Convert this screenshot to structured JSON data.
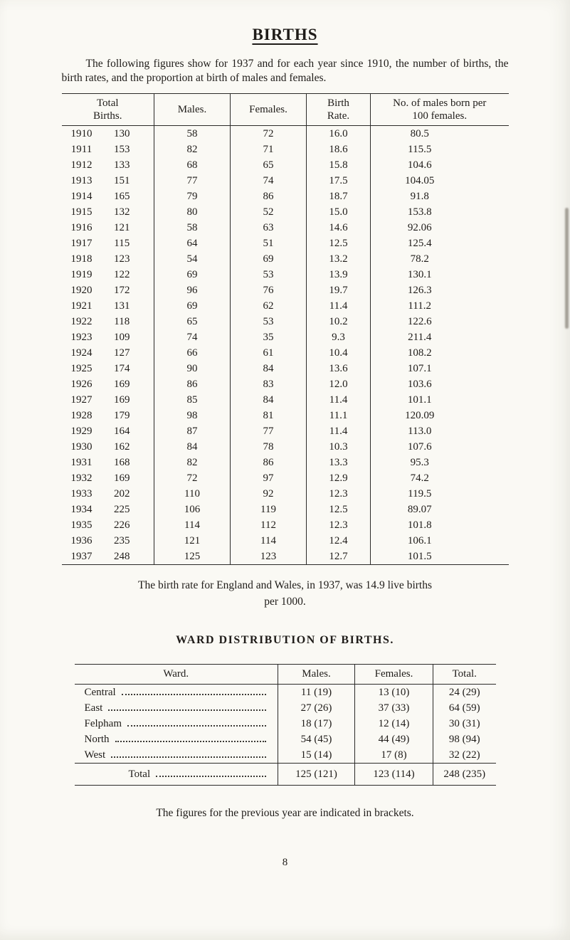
{
  "page": {
    "title": "BIRTHS",
    "intro": "The following figures show for 1937 and for each year since 1910, the number of births, the birth rates, and the proportion at birth of males and females.",
    "rate_note_line1": "The birth rate for England and Wales, in 1937, was 14.9 live births",
    "rate_note_line2": "per 1000.",
    "page_number": "8"
  },
  "births_table": {
    "headers": {
      "total_births": "Total Births.",
      "males": "Males.",
      "females": "Females.",
      "birth_rate": "Birth Rate.",
      "ratio": "No. of males born per 100 females."
    },
    "rows": [
      [
        "1910",
        "130",
        "58",
        "72",
        "16.0",
        "80.5"
      ],
      [
        "1911",
        "153",
        "82",
        "71",
        "18.6",
        "115.5"
      ],
      [
        "1912",
        "133",
        "68",
        "65",
        "15.8",
        "104.6"
      ],
      [
        "1913",
        "151",
        "77",
        "74",
        "17.5",
        "104.05"
      ],
      [
        "1914",
        "165",
        "79",
        "86",
        "18.7",
        "91.8"
      ],
      [
        "1915",
        "132",
        "80",
        "52",
        "15.0",
        "153.8"
      ],
      [
        "1916",
        "121",
        "58",
        "63",
        "14.6",
        "92.06"
      ],
      [
        "1917",
        "115",
        "64",
        "51",
        "12.5",
        "125.4"
      ],
      [
        "1918",
        "123",
        "54",
        "69",
        "13.2",
        "78.2"
      ],
      [
        "1919",
        "122",
        "69",
        "53",
        "13.9",
        "130.1"
      ],
      [
        "1920",
        "172",
        "96",
        "76",
        "19.7",
        "126.3"
      ],
      [
        "1921",
        "131",
        "69",
        "62",
        "11.4",
        "111.2"
      ],
      [
        "1922",
        "118",
        "65",
        "53",
        "10.2",
        "122.6"
      ],
      [
        "1923",
        "109",
        "74",
        "35",
        "9.3",
        "211.4"
      ],
      [
        "1924",
        "127",
        "66",
        "61",
        "10.4",
        "108.2"
      ],
      [
        "1925",
        "174",
        "90",
        "84",
        "13.6",
        "107.1"
      ],
      [
        "1926",
        "169",
        "86",
        "83",
        "12.0",
        "103.6"
      ],
      [
        "1927",
        "169",
        "85",
        "84",
        "11.4",
        "101.1"
      ],
      [
        "1928",
        "179",
        "98",
        "81",
        "11.1",
        "120.09"
      ],
      [
        "1929",
        "164",
        "87",
        "77",
        "11.4",
        "113.0"
      ],
      [
        "1930",
        "162",
        "84",
        "78",
        "10.3",
        "107.6"
      ],
      [
        "1931",
        "168",
        "82",
        "86",
        "13.3",
        "95.3"
      ],
      [
        "1932",
        "169",
        "72",
        "97",
        "12.9",
        "74.2"
      ],
      [
        "1933",
        "202",
        "110",
        "92",
        "12.3",
        "119.5"
      ],
      [
        "1934",
        "225",
        "106",
        "119",
        "12.5",
        "89.07"
      ],
      [
        "1935",
        "226",
        "114",
        "112",
        "12.3",
        "101.8"
      ],
      [
        "1936",
        "235",
        "121",
        "114",
        "12.4",
        "106.1"
      ],
      [
        "1937",
        "248",
        "125",
        "123",
        "12.7",
        "101.5"
      ]
    ]
  },
  "ward_section": {
    "title": "WARD DISTRIBUTION OF BIRTHS.",
    "headers": {
      "ward": "Ward.",
      "males": "Males.",
      "females": "Females.",
      "total": "Total."
    },
    "rows": [
      [
        "Central",
        "11 (19)",
        "13 (10)",
        "24 (29)"
      ],
      [
        "East",
        "27 (26)",
        "37 (33)",
        "64 (59)"
      ],
      [
        "Felpham",
        "18 (17)",
        "12 (14)",
        "30 (31)"
      ],
      [
        "North",
        "54 (45)",
        "44 (49)",
        "98 (94)"
      ],
      [
        "West",
        "15 (14)",
        "17 (8)",
        "32 (22)"
      ]
    ],
    "total_row": [
      "Total",
      "125 (121)",
      "123 (114)",
      "248 (235)"
    ],
    "note": "The figures for the previous year are indicated in brackets."
  }
}
